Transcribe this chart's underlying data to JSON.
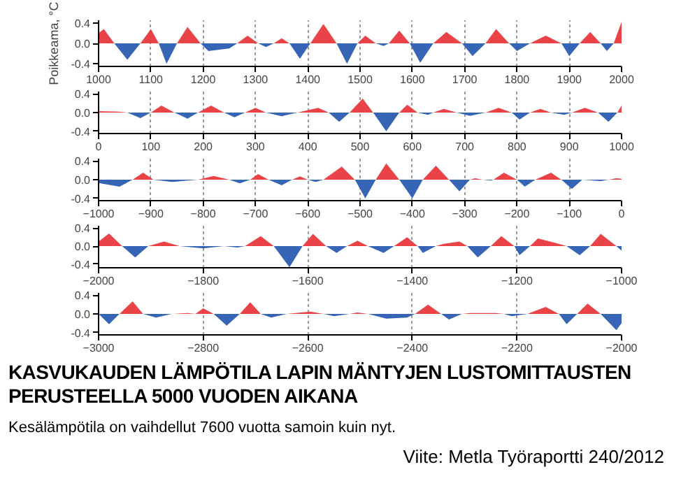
{
  "chart_data": [
    {
      "type": "area",
      "ylabel": "Poikkeama, °C",
      "xlim": [
        1000,
        2000
      ],
      "xticks": [
        1000,
        1100,
        1200,
        1300,
        1400,
        1500,
        1600,
        1700,
        1800,
        1900,
        2000
      ],
      "ylim": [
        -0.45,
        0.45
      ],
      "yticks": [
        {
          "value": -0.4,
          "label": "-0.4"
        },
        {
          "value": 0,
          "label": "0.0"
        },
        {
          "value": 0.4,
          "label": "0.4"
        }
      ],
      "grid": "x",
      "series": [
        {
          "color": "#e8383d",
          "x": [
            1000,
            1010,
            1030,
            1080,
            1100,
            1115,
            1150,
            1170,
            1195,
            1265,
            1285,
            1305,
            1335,
            1350,
            1365,
            1405,
            1430,
            1455,
            1495,
            1510,
            1530,
            1555,
            1575,
            1595,
            1640,
            1665,
            1695,
            1740,
            1760,
            1785,
            1825,
            1855,
            1885,
            1920,
            1940,
            1960,
            1985,
            2000
          ],
          "values": [
            0.2,
            0.28,
            0,
            0,
            0.28,
            0,
            0,
            0.32,
            0,
            0,
            0.15,
            0,
            0,
            0.1,
            0,
            0,
            0.38,
            0,
            0,
            0.15,
            0,
            0,
            0.25,
            0,
            0,
            0.22,
            0,
            0,
            0.28,
            0,
            0,
            0.15,
            0,
            0,
            0.22,
            0,
            0,
            0.42
          ]
        },
        {
          "color": "#2a5db0",
          "x": [
            1030,
            1055,
            1080,
            1115,
            1130,
            1150,
            1195,
            1210,
            1250,
            1265,
            1305,
            1320,
            1335,
            1365,
            1385,
            1405,
            1455,
            1475,
            1495,
            1530,
            1545,
            1555,
            1595,
            1615,
            1640,
            1695,
            1715,
            1740,
            1785,
            1800,
            1825,
            1885,
            1900,
            1920,
            1960,
            1972,
            1985
          ],
          "values": [
            0,
            -0.32,
            0,
            0,
            -0.4,
            0,
            0,
            -0.15,
            -0.1,
            0,
            0,
            -0.07,
            0,
            0,
            -0.3,
            0,
            0,
            -0.4,
            0,
            0,
            -0.05,
            0,
            0,
            -0.38,
            0,
            0,
            -0.25,
            0,
            0,
            -0.15,
            0,
            0,
            -0.25,
            0,
            0,
            -0.15,
            0
          ]
        }
      ]
    },
    {
      "type": "area",
      "xlim": [
        0,
        1000
      ],
      "xticks": [
        0,
        100,
        200,
        300,
        400,
        500,
        600,
        700,
        800,
        900,
        1000
      ],
      "ylim": [
        -0.45,
        0.45
      ],
      "yticks": [
        {
          "value": -0.4,
          "label": "-0.4"
        },
        {
          "value": 0,
          "label": "0.0"
        },
        {
          "value": 0.4,
          "label": "0.4"
        }
      ],
      "grid": "x",
      "series": [
        {
          "color": "#e8383d",
          "x": [
            0,
            40,
            55,
            100,
            120,
            145,
            190,
            215,
            240,
            280,
            300,
            320,
            380,
            420,
            440,
            480,
            505,
            525,
            575,
            590,
            610,
            640,
            660,
            685,
            740,
            765,
            790,
            825,
            845,
            865,
            905,
            930,
            955,
            992,
            1000
          ],
          "values": [
            0.03,
            0.02,
            0,
            0,
            0.15,
            0,
            0,
            0.15,
            0,
            0,
            0.1,
            0,
            0,
            0.1,
            0,
            0,
            0.3,
            0,
            0,
            0.17,
            0,
            0,
            0.08,
            0,
            0,
            0.1,
            0,
            0,
            0.08,
            0,
            0,
            0.1,
            0,
            0,
            0.15
          ]
        },
        {
          "color": "#2a5db0",
          "x": [
            55,
            80,
            100,
            145,
            170,
            190,
            240,
            260,
            280,
            320,
            350,
            380,
            440,
            460,
            480,
            525,
            550,
            575,
            610,
            630,
            640,
            685,
            710,
            740,
            790,
            805,
            825,
            865,
            890,
            905,
            955,
            975,
            992
          ],
          "values": [
            0,
            -0.12,
            0,
            0,
            -0.13,
            0,
            0,
            -0.1,
            0,
            0,
            -0.08,
            0,
            0,
            -0.2,
            0,
            0,
            -0.4,
            0,
            0,
            -0.05,
            0,
            0,
            -0.07,
            0,
            0,
            -0.15,
            0,
            0,
            -0.05,
            0,
            0,
            -0.2,
            0
          ]
        }
      ]
    },
    {
      "type": "area",
      "xlim": [
        -1000,
        0
      ],
      "xticks": [
        -1000,
        -900,
        -800,
        -700,
        -600,
        -500,
        -400,
        -300,
        -200,
        -100,
        0
      ],
      "ylim": [
        -0.45,
        0.45
      ],
      "yticks": [
        {
          "value": -0.4,
          "label": "-0.4"
        },
        {
          "value": 0,
          "label": "0.0"
        },
        {
          "value": 0.4,
          "label": "0.4"
        }
      ],
      "grid": "x",
      "series": [
        {
          "color": "#e8383d",
          "x": [
            -935,
            -915,
            -895,
            -810,
            -780,
            -750,
            -710,
            -695,
            -675,
            -630,
            -615,
            -600,
            -570,
            -535,
            -510,
            -470,
            -450,
            -425,
            -380,
            -355,
            -330,
            -290,
            -280,
            -265,
            -245,
            -225,
            -200,
            -165,
            -135,
            -115,
            -25,
            -10,
            0
          ],
          "values": [
            0,
            0.15,
            0,
            0,
            0.08,
            0,
            0,
            0.12,
            0,
            0,
            0.07,
            0,
            0,
            0.28,
            0,
            0,
            0.35,
            0,
            0,
            0.3,
            0,
            0,
            0.03,
            0,
            0,
            0.15,
            0,
            0,
            0.15,
            0,
            0,
            0.03,
            0.02
          ]
        },
        {
          "color": "#2a5db0",
          "x": [
            -1000,
            -960,
            -935,
            -895,
            -860,
            -810,
            -750,
            -730,
            -710,
            -675,
            -650,
            -630,
            -600,
            -585,
            -570,
            -510,
            -490,
            -470,
            -425,
            -400,
            -380,
            -330,
            -310,
            -290,
            -265,
            -250,
            -245,
            -200,
            -185,
            -165,
            -115,
            -95,
            -75,
            -40,
            -25
          ],
          "values": [
            -0.07,
            -0.15,
            0,
            0,
            -0.05,
            0,
            0,
            -0.08,
            0,
            0,
            -0.12,
            0,
            0,
            -0.05,
            0,
            0,
            -0.4,
            0,
            0,
            -0.4,
            0,
            0,
            -0.25,
            0,
            0,
            -0.02,
            0,
            0,
            -0.15,
            0,
            0,
            -0.2,
            0,
            -0.03,
            0
          ]
        }
      ]
    },
    {
      "type": "area",
      "xlim": [
        -2000,
        -1000
      ],
      "xticks": [
        -2000,
        -1800,
        -1600,
        -1400,
        -1200,
        -1000
      ],
      "ylim": [
        -0.48,
        0.45
      ],
      "yticks": [
        {
          "value": -0.4,
          "label": "-0.4"
        },
        {
          "value": 0,
          "label": "0.0"
        },
        {
          "value": 0.4,
          "label": "0.4"
        }
      ],
      "grid": "x",
      "series": [
        {
          "color": "#e8383d",
          "x": [
            -2000,
            -1980,
            -1955,
            -1905,
            -1875,
            -1845,
            -1760,
            -1720,
            -1690,
            -1665,
            -1610,
            -1590,
            -1565,
            -1525,
            -1505,
            -1485,
            -1435,
            -1410,
            -1390,
            -1355,
            -1340,
            -1310,
            -1295,
            -1250,
            -1230,
            -1205,
            -1175,
            -1160,
            -1120,
            -1105,
            -1060,
            -1040,
            -1010
          ],
          "values": [
            0.1,
            0.28,
            0,
            0,
            0.1,
            0,
            0,
            0,
            0.22,
            0,
            0,
            0.27,
            0,
            0,
            0.12,
            0,
            0,
            0.2,
            0,
            0,
            0.05,
            0.1,
            0,
            0,
            0.22,
            0,
            0,
            0.17,
            0.05,
            0,
            0,
            0.27,
            0
          ]
        },
        {
          "color": "#2a5db0",
          "x": [
            -1955,
            -1930,
            -1905,
            -1845,
            -1800,
            -1760,
            -1735,
            -1720,
            -1665,
            -1635,
            -1610,
            -1565,
            -1545,
            -1525,
            -1485,
            -1455,
            -1435,
            -1390,
            -1380,
            -1355,
            -1295,
            -1275,
            -1250,
            -1205,
            -1195,
            -1175,
            -1105,
            -1080,
            -1060,
            -1010,
            -1000
          ],
          "values": [
            0,
            -0.25,
            0,
            0,
            -0.05,
            0,
            -0.03,
            0,
            0,
            -0.47,
            0,
            0,
            -0.15,
            0,
            0,
            -0.15,
            0,
            0,
            -0.15,
            0,
            0,
            -0.25,
            0,
            0,
            -0.2,
            0,
            0,
            -0.2,
            0,
            0,
            -0.1
          ]
        }
      ]
    },
    {
      "type": "area",
      "xlim": [
        -3000,
        -2000
      ],
      "xticks": [
        -3000,
        -2800,
        -2600,
        -2400,
        -2200,
        -2000
      ],
      "ylim": [
        -0.45,
        0.45
      ],
      "yticks": [
        {
          "value": -0.4,
          "label": "-0.4"
        },
        {
          "value": 0,
          "label": "0.0"
        },
        {
          "value": 0.4,
          "label": "0.4"
        }
      ],
      "grid": "x",
      "title": "KASVUKAUDEN LÄMPÖTILA LAPIN MÄNTYJEN LUSTOMITTAUSTEN PERUSTEELLA 5000 VUODEN AIKANA",
      "annotations": [
        "Kesälämpötila on vaihdellut 7600 vuotta samoin kuin nyt.",
        "Viite: Metla Työraportti 240/2012"
      ],
      "series": [
        {
          "color": "#e8383d",
          "x": [
            -2960,
            -2935,
            -2915,
            -2860,
            -2830,
            -2815,
            -2800,
            -2780,
            -2730,
            -2710,
            -2690,
            -2640,
            -2595,
            -2570,
            -2520,
            -2505,
            -2485,
            -2395,
            -2370,
            -2345,
            -2305,
            -2290,
            -2240,
            -2225,
            -2180,
            -2145,
            -2120,
            -2085,
            -2065,
            -2040
          ],
          "values": [
            0,
            0.27,
            0,
            0,
            0.02,
            0,
            0.12,
            0,
            0,
            0.25,
            0,
            0,
            0.05,
            0,
            0,
            0.03,
            0,
            0,
            0.2,
            0,
            0,
            0.02,
            0.02,
            0,
            0,
            0.15,
            0,
            0,
            0.22,
            0
          ]
        },
        {
          "color": "#2a5db0",
          "x": [
            -3000,
            -2980,
            -2960,
            -2915,
            -2890,
            -2860,
            -2780,
            -2755,
            -2730,
            -2690,
            -2670,
            -2640,
            -2570,
            -2550,
            -2520,
            -2485,
            -2450,
            -2410,
            -2395,
            -2345,
            -2330,
            -2305,
            -2225,
            -2210,
            -2180,
            -2120,
            -2105,
            -2085,
            -2040,
            -2010,
            -2000
          ],
          "values": [
            0,
            -0.22,
            0,
            0,
            -0.08,
            0,
            0,
            -0.25,
            0,
            0,
            -0.08,
            0,
            0,
            -0.05,
            0,
            0,
            -0.1,
            -0.08,
            0,
            0,
            -0.12,
            0,
            0,
            -0.05,
            0,
            0,
            -0.22,
            0,
            0,
            -0.35,
            -0.2
          ]
        }
      ]
    }
  ]
}
